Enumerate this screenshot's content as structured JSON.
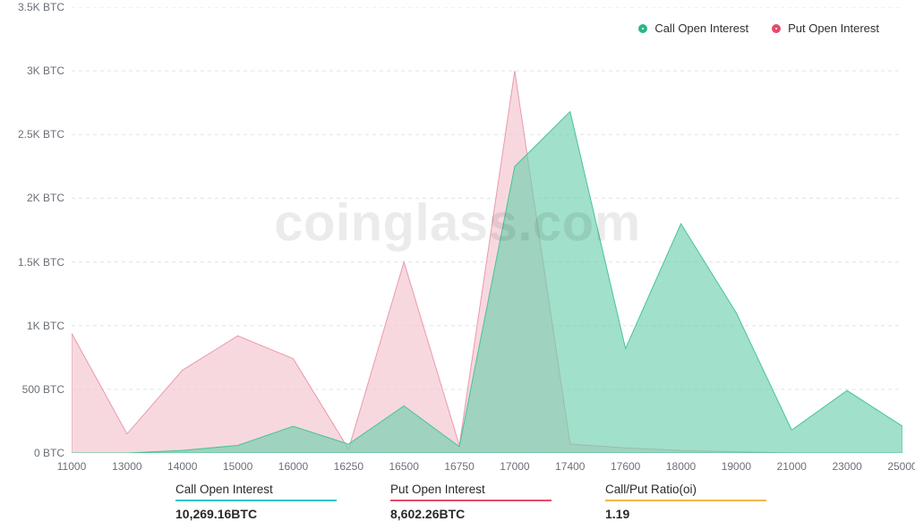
{
  "chart": {
    "type": "area",
    "background_color": "#ffffff",
    "grid_color": "#dfe3e8",
    "grid_dash": "4 4",
    "ylim": [
      0,
      3500
    ],
    "yticks": [
      0,
      500,
      1000,
      1500,
      2000,
      2500,
      3000,
      3500
    ],
    "ytick_labels": [
      "0 BTC",
      "500 BTC",
      "1K BTC",
      "1.5K BTC",
      "2K BTC",
      "2.5K BTC",
      "3K BTC",
      "3.5K BTC"
    ],
    "ytick_fontsize": 12,
    "ytick_color": "#6a6f78",
    "x_categories": [
      "11000",
      "13000",
      "14000",
      "15000",
      "16000",
      "16250",
      "16500",
      "16750",
      "17000",
      "17400",
      "17600",
      "18000",
      "19000",
      "21000",
      "23000",
      "25000"
    ],
    "xtick_fontsize": 12,
    "xtick_color": "#6a6f78",
    "series": {
      "call": {
        "name": "Call Open Interest",
        "fill": "rgba(111,207,174,0.65)",
        "stroke": "#47c596",
        "marker_color": "#2ab785",
        "values": [
          0,
          0,
          20,
          60,
          210,
          70,
          370,
          50,
          2250,
          2680,
          820,
          1800,
          1100,
          180,
          490,
          210
        ]
      },
      "put": {
        "name": "Put  Open Interest",
        "fill": "rgba(245,200,210,0.7)",
        "stroke": "#e99aad",
        "marker_color": "#e74a6c",
        "values": [
          940,
          150,
          650,
          920,
          740,
          30,
          1500,
          60,
          3000,
          70,
          40,
          20,
          10,
          0,
          0,
          0
        ]
      }
    },
    "watermark": "coinglass.com"
  },
  "legend": {
    "call": "Call Open Interest",
    "put": "Put  Open Interest"
  },
  "stats": {
    "call": {
      "label": "Call Open Interest",
      "value": "10,269.16BTC",
      "rule_color": "#2ec4c4"
    },
    "put": {
      "label": "Put Open Interest",
      "value": "8,602.26BTC",
      "rule_color": "#e74a6c"
    },
    "ratio": {
      "label": "Call/Put Ratio(oi)",
      "value": "1.19",
      "rule_color": "#f0b84a"
    }
  }
}
